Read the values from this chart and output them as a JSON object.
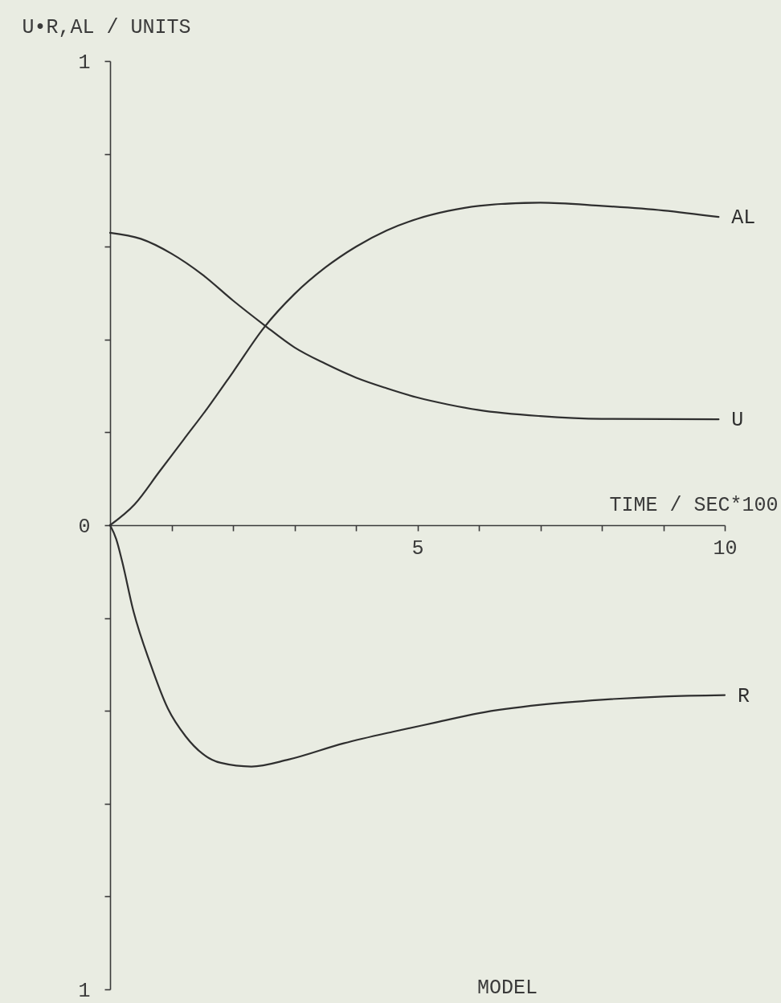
{
  "chart_data": {
    "type": "line",
    "title": "MODEL",
    "xlabel": "TIME / SEC*100",
    "ylabel": "U•R,AL / UNITS",
    "xlim": [
      0,
      10
    ],
    "ylim": [
      -1,
      1
    ],
    "xticks": [
      {
        "value": 1,
        "label": null
      },
      {
        "value": 2,
        "label": null
      },
      {
        "value": 3,
        "label": null
      },
      {
        "value": 4,
        "label": null
      },
      5,
      {
        "value": 6,
        "label": null
      },
      {
        "value": 7,
        "label": null
      },
      {
        "value": 8,
        "label": null
      },
      {
        "value": 9,
        "label": null
      },
      10
    ],
    "yticks": [
      {
        "value": -1,
        "label": "1"
      },
      {
        "value": -0.8,
        "label": null
      },
      {
        "value": -0.6,
        "label": null
      },
      {
        "value": -0.4,
        "label": null
      },
      {
        "value": -0.2,
        "label": null
      },
      0,
      {
        "value": 0.2,
        "label": null
      },
      {
        "value": 0.4,
        "label": null
      },
      {
        "value": 0.6,
        "label": null
      },
      {
        "value": 0.8,
        "label": null
      },
      1
    ],
    "series": [
      {
        "name": "AL",
        "color": "#2f2f2f",
        "x": [
          0,
          0.4,
          0.8,
          1.2,
          1.6,
          2.0,
          2.5,
          3.0,
          3.5,
          4.0,
          4.5,
          5.0,
          5.5,
          6.0,
          7.0,
          8.0,
          9.0,
          9.9
        ],
        "values": [
          0,
          0.045,
          0.115,
          0.185,
          0.255,
          0.33,
          0.425,
          0.498,
          0.555,
          0.6,
          0.635,
          0.66,
          0.677,
          0.688,
          0.695,
          0.688,
          0.678,
          0.664
        ]
      },
      {
        "name": "U",
        "color": "#2f2f2f",
        "x": [
          0,
          0.5,
          1.0,
          1.5,
          2.0,
          2.5,
          3.0,
          3.5,
          4.0,
          4.5,
          5.0,
          5.5,
          6.0,
          7.0,
          8.0,
          9.9
        ],
        "values": [
          0.63,
          0.617,
          0.585,
          0.54,
          0.484,
          0.432,
          0.383,
          0.348,
          0.318,
          0.295,
          0.275,
          0.26,
          0.248,
          0.235,
          0.229,
          0.228
        ]
      },
      {
        "name": "R",
        "color": "#2f2f2f",
        "x": [
          0,
          0.1,
          0.2,
          0.37,
          0.66,
          0.94,
          1.23,
          1.51,
          1.8,
          2.3,
          2.9,
          3.8,
          4.6,
          5.3,
          6.0,
          7.0,
          8.0,
          9.0,
          10.0
        ],
        "values": [
          0,
          -0.03,
          -0.08,
          -0.18,
          -0.3,
          -0.395,
          -0.455,
          -0.493,
          -0.512,
          -0.52,
          -0.505,
          -0.47,
          -0.445,
          -0.425,
          -0.405,
          -0.387,
          -0.376,
          -0.369,
          -0.366
        ]
      }
    ]
  }
}
